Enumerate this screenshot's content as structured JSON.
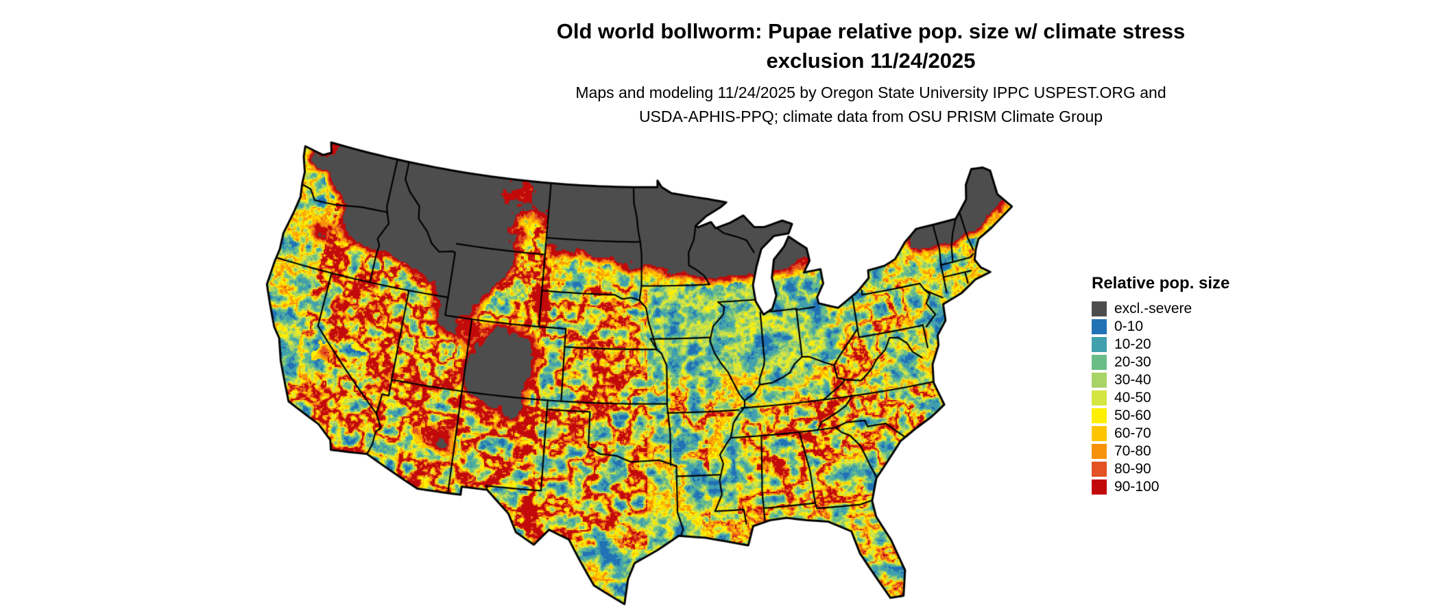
{
  "title": {
    "line1": "Old world bollworm: Pupae relative pop. size w/ climate stress",
    "line2": "exclusion 11/24/2025"
  },
  "subtitle": {
    "line1": "Maps and modeling 11/24/2025 by Oregon State University IPPC USPEST.ORG and",
    "line2": "USDA-APHIS-PPQ; climate data from OSU PRISM Climate Group"
  },
  "map": {
    "region": "Continental United States",
    "background_color": "#ffffff",
    "boundary_color": "#000000"
  },
  "legend": {
    "title": "Relative pop. size",
    "items": [
      {
        "label": "excl.-severe",
        "color": "#4d4d4d"
      },
      {
        "label": "0-10",
        "color": "#2171b5"
      },
      {
        "label": "10-20",
        "color": "#41a0ad"
      },
      {
        "label": "20-30",
        "color": "#6abd87"
      },
      {
        "label": "30-40",
        "color": "#a8d465"
      },
      {
        "label": "40-50",
        "color": "#d4e542"
      },
      {
        "label": "50-60",
        "color": "#ffef00"
      },
      {
        "label": "60-70",
        "color": "#fec400"
      },
      {
        "label": "70-80",
        "color": "#f8920a"
      },
      {
        "label": "80-90",
        "color": "#e25222"
      },
      {
        "label": "90-100",
        "color": "#c20a0a"
      }
    ]
  }
}
